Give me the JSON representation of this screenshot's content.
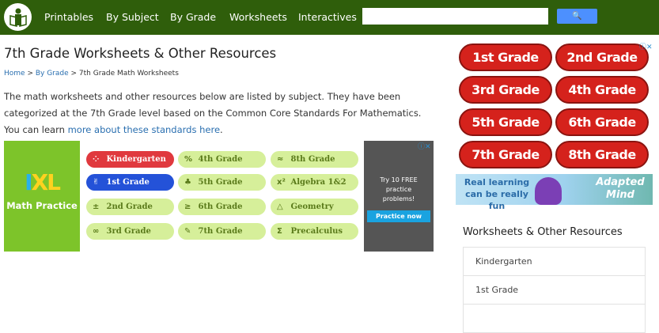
{
  "header": {
    "nav": [
      "Printables",
      "By Subject",
      "By Grade",
      "Worksheets",
      "Interactives"
    ],
    "search_placeholder": "",
    "search_button": "🔍"
  },
  "page": {
    "title": "7th Grade Worksheets & Other Resources",
    "breadcrumb": {
      "home": "Home",
      "sep": " > ",
      "by_grade": "By Grade",
      "current": "7th Grade Math Worksheets"
    },
    "intro": "The math worksheets and other resources below are listed by subject. They have been categorized at the 7th Grade level based on the Common Core Standards For Mathematics. You can learn ",
    "intro_link": "more about these standards here",
    "intro_end": "."
  },
  "ixl_ad": {
    "logo_i": "I",
    "logo_xl": "XL",
    "tagline": "Math Practice",
    "pills": [
      {
        "icon": "⁘",
        "label": "Kindergarten",
        "color": "#e0393e"
      },
      {
        "icon": "%",
        "label": "4th Grade"
      },
      {
        "icon": "≈",
        "label": "8th Grade"
      },
      {
        "icon": "✌",
        "label": "1st Grade",
        "color": "#2452d8"
      },
      {
        "icon": "♣",
        "label": "5th Grade"
      },
      {
        "icon": "x²",
        "label": "Algebra 1&2"
      },
      {
        "icon": "±",
        "label": "2nd Grade"
      },
      {
        "icon": "≥",
        "label": "6th Grade"
      },
      {
        "icon": "△",
        "label": "Geometry"
      },
      {
        "icon": "∞",
        "label": "3rd Grade"
      },
      {
        "icon": "✎",
        "label": "7th Grade"
      },
      {
        "icon": "Σ",
        "label": "Precalculus"
      }
    ],
    "side_text": "Try 10 FREE practice problems!",
    "side_button": "Practice now",
    "ad_icons": "ⓘ✕"
  },
  "right_ad": {
    "grades": [
      "1st Grade",
      "2nd Grade",
      "3rd Grade",
      "4th Grade",
      "5th Grade",
      "6th Grade",
      "7th Grade",
      "8th Grade"
    ],
    "banner_left": "Real learning can be really fun",
    "banner_right": "Adapted Mind",
    "ad_icons": "ⓘ✕"
  },
  "sidebar": {
    "heading": "Worksheets & Other Resources",
    "items": [
      "Kindergarten",
      "1st Grade",
      ""
    ]
  }
}
